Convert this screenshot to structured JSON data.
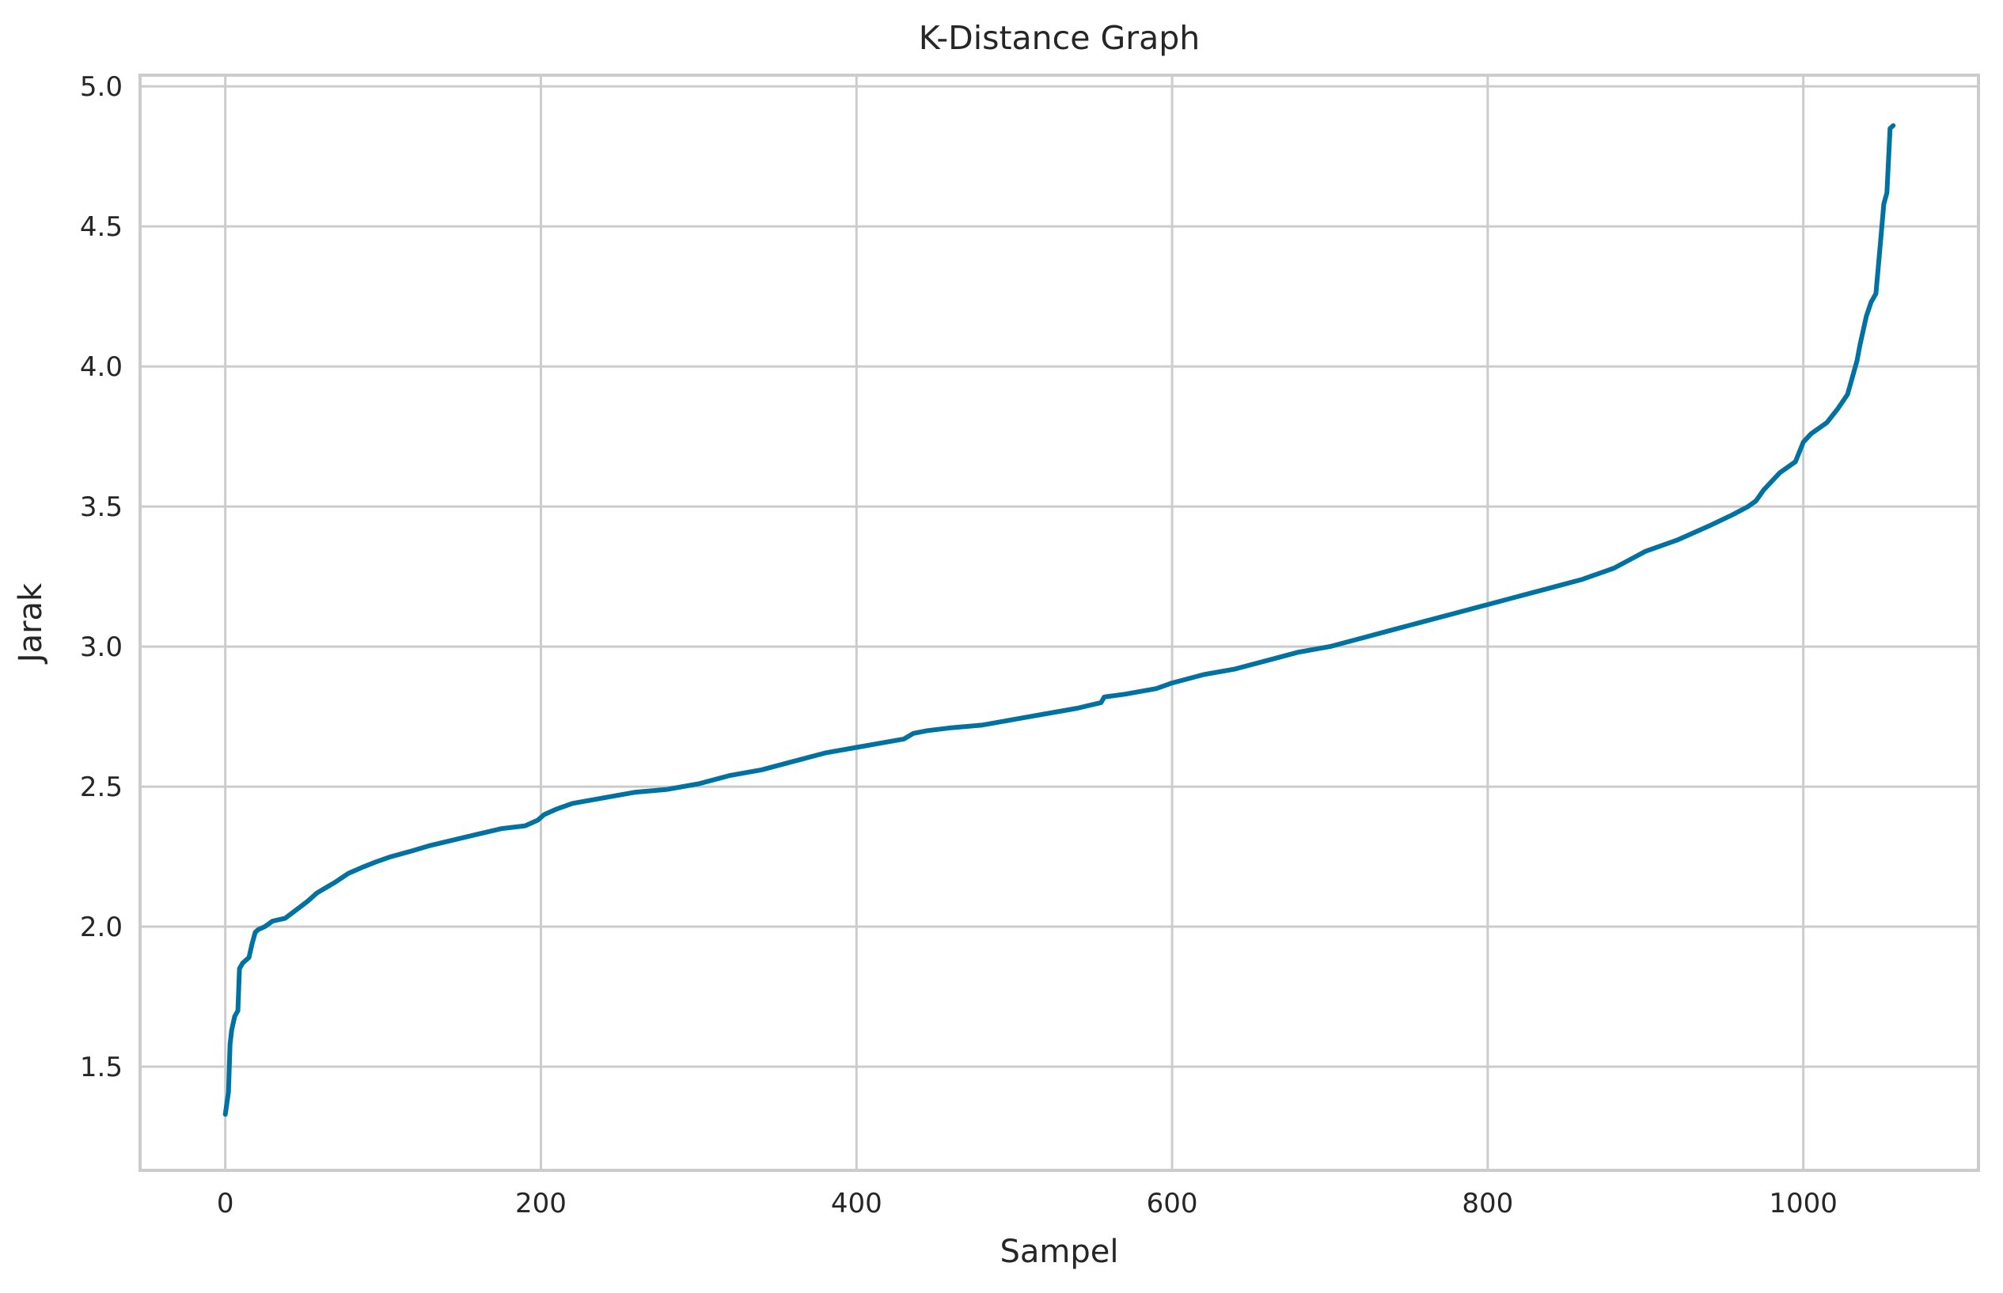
{
  "chart_data": {
    "type": "line",
    "title": "K-Distance Graph",
    "xlabel": "Sampel",
    "ylabel": "Jarak",
    "xlim": [
      -54,
      1111
    ],
    "ylim": [
      1.13,
      5.04
    ],
    "xticks": [
      0,
      200,
      400,
      600,
      800,
      1000
    ],
    "xtick_labels": [
      "0",
      "200",
      "400",
      "600",
      "800",
      "1000"
    ],
    "yticks": [
      1.5,
      2.0,
      2.5,
      3.0,
      3.5,
      4.0,
      4.5,
      5.0
    ],
    "ytick_labels": [
      "1.5",
      "2.0",
      "2.5",
      "3.0",
      "3.5",
      "4.0",
      "4.5",
      "5.0"
    ],
    "grid": true,
    "line_color": "#0072a2",
    "series": [
      {
        "x": [
          0,
          2,
          3,
          4,
          6,
          8,
          9,
          10,
          11,
          15,
          17,
          19,
          21,
          25,
          30,
          38,
          45,
          52,
          58,
          64,
          70,
          78,
          86,
          95,
          105,
          118,
          130,
          145,
          160,
          175,
          190,
          198,
          202,
          210,
          220,
          240,
          260,
          280,
          300,
          320,
          340,
          360,
          380,
          400,
          420,
          430,
          436,
          445,
          460,
          480,
          500,
          520,
          540,
          555,
          557,
          570,
          590,
          600,
          620,
          640,
          660,
          680,
          700,
          720,
          740,
          760,
          780,
          800,
          820,
          840,
          860,
          880,
          890,
          900,
          920,
          940,
          955,
          965,
          970,
          975,
          985,
          995,
          1000,
          1005,
          1015,
          1022,
          1028,
          1030,
          1034,
          1036,
          1040,
          1043,
          1046,
          1049,
          1051,
          1053,
          1055,
          1057
        ],
        "y": [
          1.33,
          1.41,
          1.58,
          1.63,
          1.68,
          1.7,
          1.85,
          1.86,
          1.87,
          1.89,
          1.94,
          1.98,
          1.99,
          2.0,
          2.02,
          2.03,
          2.06,
          2.09,
          2.12,
          2.14,
          2.16,
          2.19,
          2.21,
          2.23,
          2.25,
          2.27,
          2.29,
          2.31,
          2.33,
          2.35,
          2.36,
          2.38,
          2.4,
          2.42,
          2.44,
          2.46,
          2.48,
          2.49,
          2.51,
          2.54,
          2.56,
          2.59,
          2.62,
          2.64,
          2.66,
          2.67,
          2.69,
          2.7,
          2.71,
          2.72,
          2.74,
          2.76,
          2.78,
          2.8,
          2.82,
          2.83,
          2.85,
          2.87,
          2.9,
          2.92,
          2.95,
          2.98,
          3.0,
          3.03,
          3.06,
          3.09,
          3.12,
          3.15,
          3.18,
          3.21,
          3.24,
          3.28,
          3.31,
          3.34,
          3.38,
          3.43,
          3.47,
          3.5,
          3.52,
          3.56,
          3.62,
          3.66,
          3.73,
          3.76,
          3.8,
          3.85,
          3.9,
          3.94,
          4.02,
          4.08,
          4.18,
          4.23,
          4.26,
          4.45,
          4.58,
          4.62,
          4.85,
          4.86
        ]
      }
    ]
  }
}
